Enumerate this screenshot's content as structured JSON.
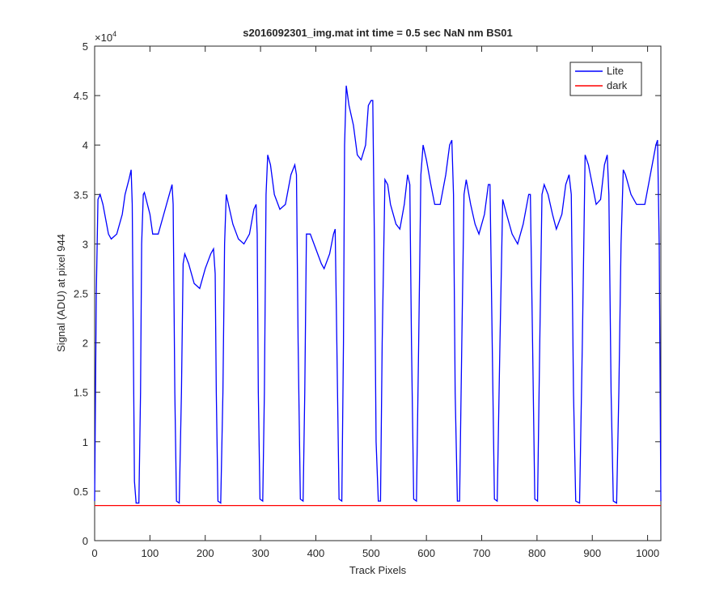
{
  "chart_data": {
    "type": "line",
    "title": "s2016092301_img.mat int time = 0.5 sec  NaN nm BS01",
    "x_label": "Track Pixels",
    "y_label": "Signal (ADU) at pixel 944",
    "y_multiplier": {
      "base": "×10",
      "exponent": "4"
    },
    "xlim": [
      0,
      1024
    ],
    "ylim": [
      0,
      5
    ],
    "xticks": [
      0,
      100,
      200,
      300,
      400,
      500,
      600,
      700,
      800,
      900,
      1000
    ],
    "yticks": [
      0,
      0.5,
      1,
      1.5,
      2,
      2.5,
      3,
      3.5,
      4,
      4.5,
      5
    ],
    "legend": "upper right",
    "series": [
      {
        "name": "Lite",
        "color": "#0000ff",
        "x": [
          0,
          3,
          6,
          10,
          15,
          20,
          25,
          30,
          40,
          50,
          55,
          62,
          66,
          68,
          70,
          72,
          75,
          80,
          83,
          85,
          88,
          90,
          100,
          105,
          115,
          125,
          135,
          140,
          142,
          145,
          148,
          153,
          157,
          160,
          163,
          170,
          180,
          190,
          200,
          210,
          215,
          218,
          220,
          223,
          228,
          232,
          235,
          238,
          242,
          250,
          260,
          270,
          280,
          288,
          292,
          294,
          296,
          299,
          304,
          307,
          310,
          313,
          318,
          325,
          335,
          345,
          355,
          362,
          365,
          368,
          372,
          377,
          380,
          383,
          390,
          400,
          410,
          415,
          425,
          432,
          435,
          438,
          442,
          447,
          450,
          452,
          455,
          460,
          468,
          475,
          482,
          490,
          495,
          500,
          503,
          506,
          509,
          513,
          517,
          520,
          525,
          530,
          535,
          545,
          552,
          560,
          566,
          570,
          573,
          577,
          582,
          586,
          590,
          594,
          600,
          608,
          615,
          625,
          635,
          642,
          646,
          649,
          652,
          656,
          660,
          664,
          668,
          672,
          680,
          688,
          695,
          705,
          712,
          715,
          719,
          723,
          728,
          733,
          738,
          745,
          755,
          765,
          775,
          785,
          788,
          792,
          796,
          801,
          805,
          809,
          813,
          820,
          828,
          835,
          845,
          852,
          858,
          862,
          866,
          870,
          877,
          882,
          887,
          893,
          900,
          907,
          915,
          922,
          927,
          930,
          934,
          938,
          944,
          948,
          952,
          956,
          960,
          970,
          980,
          995,
          1005,
          1015,
          1018,
          1021,
          1024
        ],
        "values": [
          0.4,
          2.5,
          3.45,
          3.5,
          3.4,
          3.25,
          3.1,
          3.05,
          3.1,
          3.3,
          3.5,
          3.65,
          3.75,
          3.4,
          2,
          0.6,
          0.38,
          0.38,
          1.5,
          3.0,
          3.5,
          3.52,
          3.3,
          3.1,
          3.1,
          3.3,
          3.5,
          3.6,
          3.4,
          1.5,
          0.4,
          0.38,
          1.5,
          2.8,
          2.9,
          2.8,
          2.6,
          2.55,
          2.75,
          2.9,
          2.95,
          2.7,
          1.5,
          0.4,
          0.38,
          1.5,
          3.0,
          3.5,
          3.4,
          3.2,
          3.05,
          3.0,
          3.1,
          3.35,
          3.4,
          3.1,
          1.5,
          0.42,
          0.4,
          1.5,
          3.5,
          3.9,
          3.8,
          3.5,
          3.35,
          3.4,
          3.7,
          3.8,
          3.7,
          2,
          0.42,
          0.4,
          1.5,
          3.1,
          3.1,
          2.95,
          2.8,
          2.75,
          2.9,
          3.1,
          3.15,
          2,
          0.42,
          0.4,
          2,
          4.0,
          4.6,
          4.4,
          4.2,
          3.9,
          3.85,
          4.0,
          4.4,
          4.45,
          4.45,
          3,
          1,
          0.4,
          0.4,
          2,
          3.65,
          3.6,
          3.4,
          3.2,
          3.15,
          3.4,
          3.7,
          3.6,
          2,
          0.42,
          0.4,
          2,
          3.7,
          4.0,
          3.85,
          3.6,
          3.4,
          3.4,
          3.7,
          4.0,
          4.05,
          3.5,
          1.5,
          0.4,
          0.4,
          2,
          3.5,
          3.65,
          3.4,
          3.2,
          3.1,
          3.3,
          3.6,
          3.6,
          2,
          0.42,
          0.4,
          2,
          3.45,
          3.3,
          3.1,
          3.0,
          3.2,
          3.5,
          3.5,
          2,
          0.42,
          0.4,
          2,
          3.5,
          3.6,
          3.5,
          3.3,
          3.15,
          3.3,
          3.6,
          3.7,
          3.5,
          1.5,
          0.4,
          0.38,
          2,
          3.9,
          3.8,
          3.6,
          3.4,
          3.45,
          3.8,
          3.9,
          3.5,
          1.5,
          0.4,
          0.38,
          1.5,
          3.0,
          3.75,
          3.7,
          3.5,
          3.4,
          3.4,
          3.7,
          4.0,
          4.05,
          3,
          0.4
        ]
      },
      {
        "name": "dark",
        "color": "#ff0000",
        "x": [
          0,
          1024
        ],
        "values": [
          0.355,
          0.355
        ]
      }
    ]
  }
}
